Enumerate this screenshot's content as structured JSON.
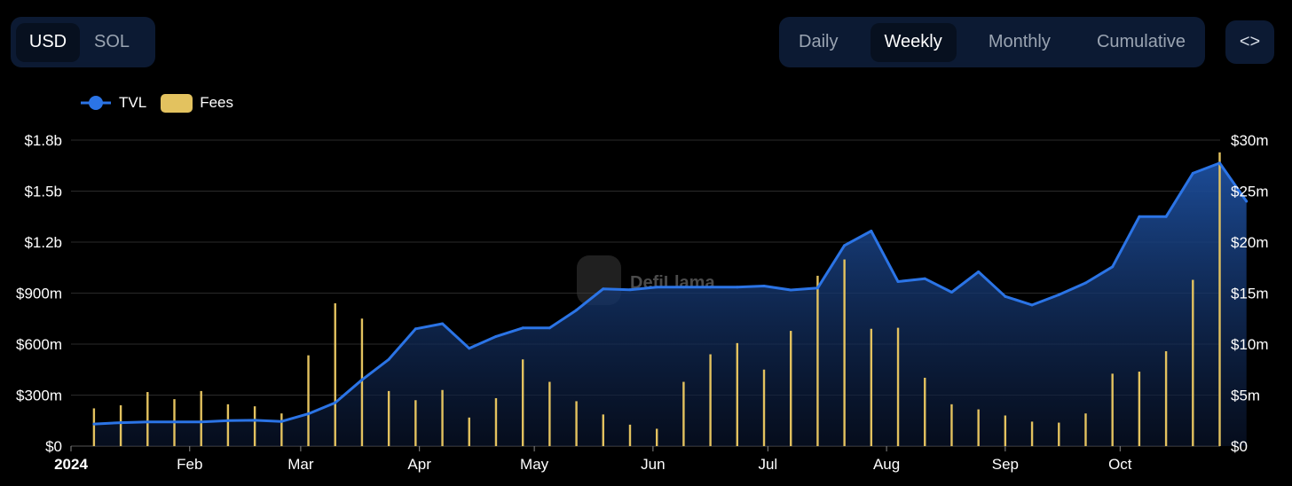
{
  "currency_toggle": {
    "options": [
      "USD",
      "SOL"
    ],
    "selected": "USD"
  },
  "period_toggle": {
    "options": [
      "Daily",
      "Weekly",
      "Monthly",
      "Cumulative"
    ],
    "selected": "Weekly"
  },
  "embed_icon": "code-brackets-icon",
  "watermark": "DefiLlama",
  "colors": {
    "tvl": "#2b74e6",
    "fees": "#e3c25f",
    "background": "#000000"
  },
  "chart_data": {
    "type": "line+bar",
    "legend_position": "top-left",
    "grid": true,
    "x_labels": [
      "2024",
      "Feb",
      "Mar",
      "Apr",
      "May",
      "Jun",
      "Jul",
      "Aug",
      "Sep",
      "Oct"
    ],
    "x": [
      "2024-01-07",
      "2024-01-14",
      "2024-01-21",
      "2024-01-28",
      "2024-02-04",
      "2024-02-11",
      "2024-02-18",
      "2024-02-25",
      "2024-03-03",
      "2024-03-10",
      "2024-03-17",
      "2024-03-24",
      "2024-03-31",
      "2024-04-07",
      "2024-04-14",
      "2024-04-21",
      "2024-04-28",
      "2024-05-05",
      "2024-05-12",
      "2024-05-19",
      "2024-05-26",
      "2024-06-02",
      "2024-06-09",
      "2024-06-16",
      "2024-06-23",
      "2024-06-30",
      "2024-07-07",
      "2024-07-14",
      "2024-07-21",
      "2024-07-28",
      "2024-08-04",
      "2024-08-11",
      "2024-08-18",
      "2024-08-25",
      "2024-09-01",
      "2024-09-08",
      "2024-09-15",
      "2024-09-22",
      "2024-09-29",
      "2024-10-06",
      "2024-10-13",
      "2024-10-20",
      "2024-10-27",
      "2024-11-03"
    ],
    "left_axis": {
      "label": "",
      "ticks": [
        "$0",
        "$300m",
        "$600m",
        "$900m",
        "$1.2b",
        "$1.5b",
        "$1.8b"
      ],
      "ylim": [
        0,
        1800
      ]
    },
    "right_axis": {
      "label": "",
      "ticks": [
        "$0",
        "$5m",
        "$10m",
        "$15m",
        "$20m",
        "$25m",
        "$30m"
      ],
      "ylim": [
        0,
        30
      ]
    },
    "series": [
      {
        "name": "TVL",
        "type": "area",
        "axis": "left",
        "unit": "$m",
        "values": [
          130,
          138,
          142,
          142,
          142,
          150,
          152,
          145,
          190,
          255,
          390,
          510,
          690,
          720,
          575,
          645,
          695,
          695,
          800,
          925,
          920,
          935,
          935,
          935,
          935,
          942,
          918,
          930,
          1180,
          1265,
          968,
          985,
          905,
          1025,
          880,
          830,
          890,
          960,
          1055,
          1350,
          1350,
          1605,
          1665,
          1440
        ]
      },
      {
        "name": "Fees",
        "type": "bar",
        "axis": "right",
        "unit": "$m",
        "values": [
          3.7,
          4.0,
          5.3,
          4.6,
          5.4,
          4.1,
          3.9,
          3.2,
          8.9,
          14.0,
          12.5,
          5.4,
          4.5,
          5.5,
          2.8,
          4.7,
          8.5,
          6.3,
          4.4,
          3.1,
          2.1,
          1.7,
          6.3,
          9.0,
          10.1,
          7.5,
          11.3,
          16.7,
          18.3,
          11.5,
          11.6,
          6.7,
          4.1,
          3.6,
          3.0,
          2.4,
          2.3,
          3.2,
          7.1,
          7.3,
          9.3,
          16.3,
          28.8,
          0
        ]
      }
    ]
  }
}
